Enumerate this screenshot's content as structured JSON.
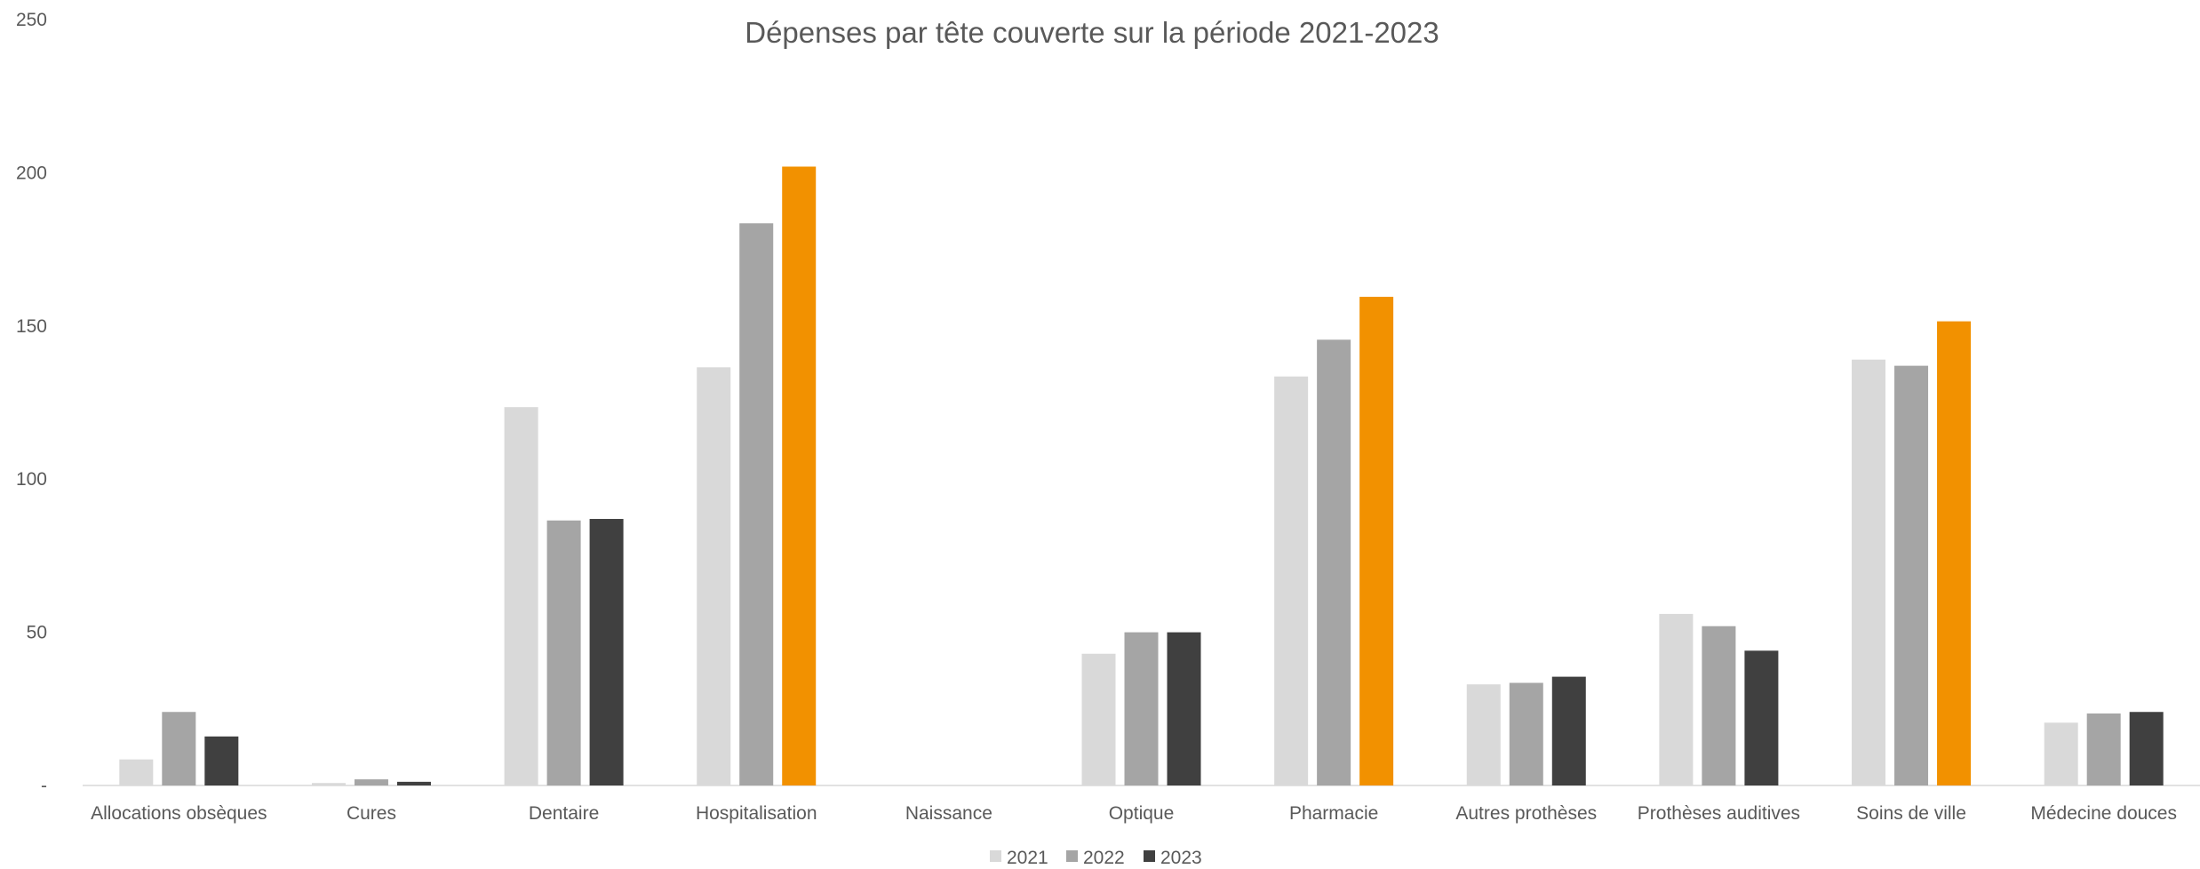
{
  "chart_data": {
    "type": "bar",
    "title": "Dépenses par tête couverte sur la période 2021-2023",
    "xlabel": "",
    "ylabel": "",
    "ylim": [
      0,
      250
    ],
    "yticks": [
      "-",
      "50",
      "100",
      "150",
      "200",
      "250"
    ],
    "grid": false,
    "legend_position": "bottom",
    "categories": [
      "Allocations obsèques",
      "Cures",
      "Dentaire",
      "Hospitalisation",
      "Naissance",
      "Optique",
      "Pharmacie",
      "Autres prothèses",
      "Prothèses auditives",
      "Soins de ville",
      "Médecine douces"
    ],
    "series": [
      {
        "name": "2021",
        "color": "#d9d9d9",
        "values": [
          8.5,
          0.8,
          123.5,
          136.5,
          0,
          43,
          133.5,
          33,
          56,
          139,
          20.5
        ]
      },
      {
        "name": "2022",
        "color": "#a5a5a5",
        "values": [
          24,
          2,
          86.5,
          183.5,
          0,
          50,
          145.5,
          33.5,
          52,
          137,
          23.5
        ]
      },
      {
        "name": "2023",
        "color": "#404040",
        "values": [
          16,
          1.2,
          87,
          202,
          0,
          50,
          159.5,
          35.5,
          44,
          151.5,
          24
        ]
      }
    ],
    "highlight_color": "#f29100",
    "highlighted_bars": [
      {
        "series": "2023",
        "category": "Hospitalisation"
      },
      {
        "series": "2023",
        "category": "Pharmacie"
      },
      {
        "series": "2023",
        "category": "Soins de ville"
      }
    ]
  }
}
